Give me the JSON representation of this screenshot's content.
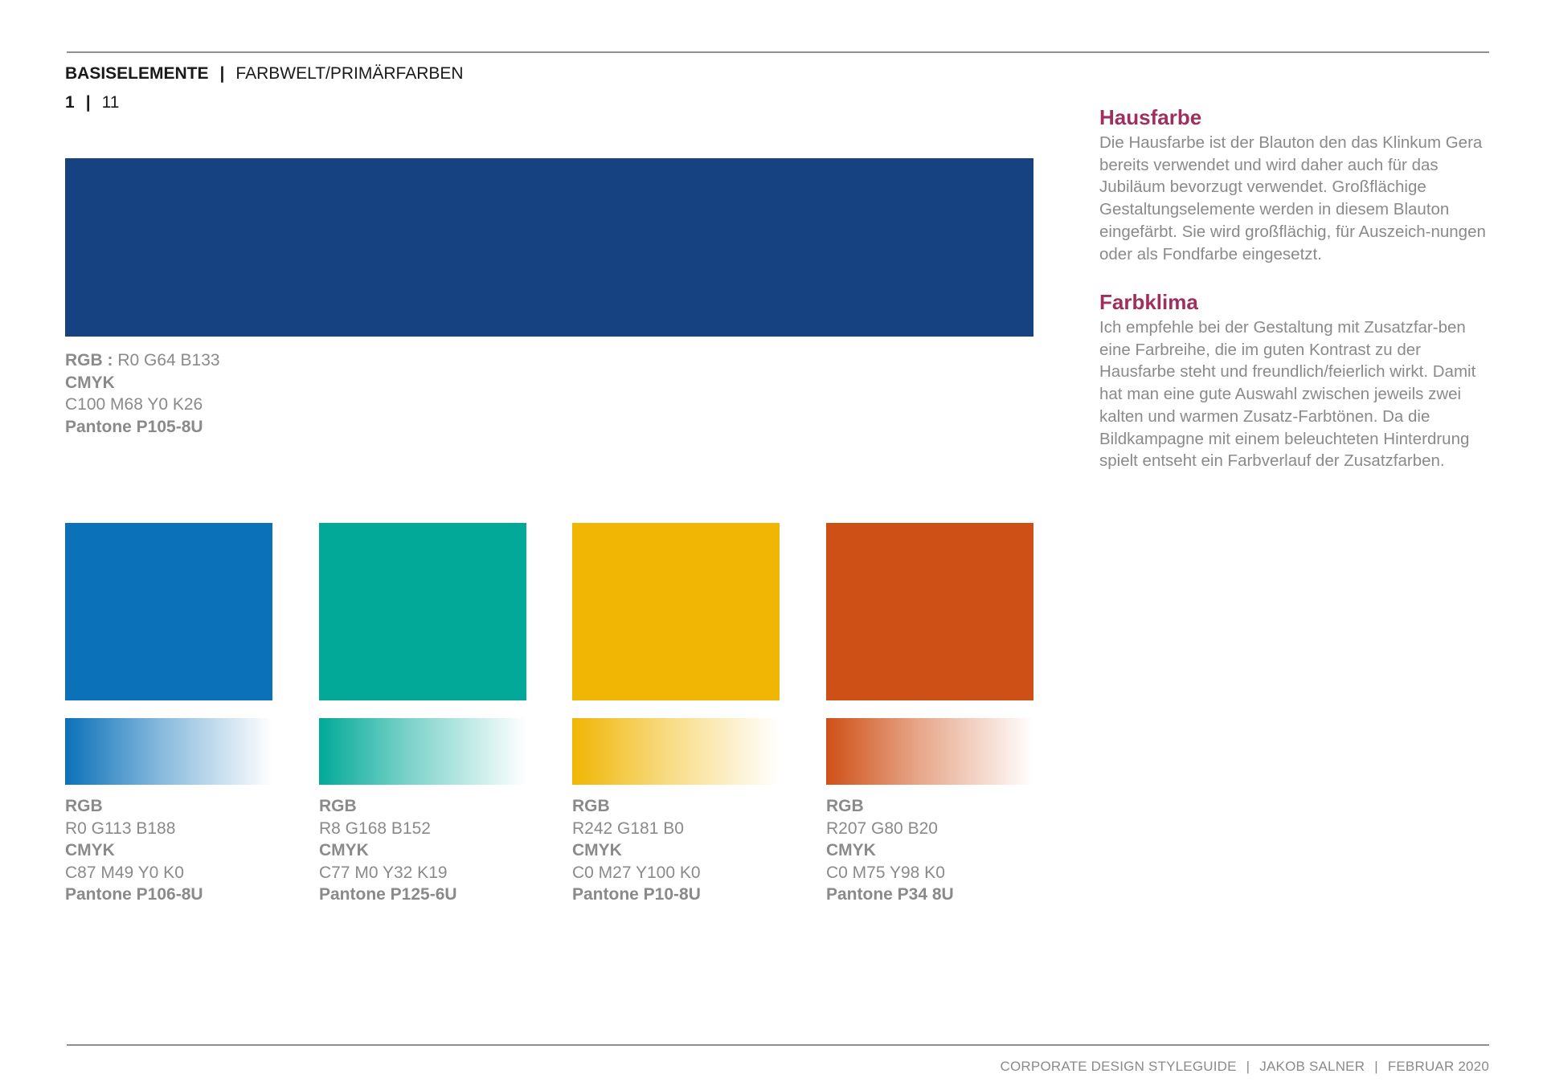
{
  "header": {
    "section": "BASISELEMENTE",
    "separator": "|",
    "subsection": "FARBWELT/PRIMÄRFARBEN",
    "page_current": "1",
    "page_total": "11"
  },
  "main_color": {
    "hex": "#174281",
    "rgb_label": "RGB :",
    "rgb_value": "R0 G64 B133",
    "cmyk_label": "CMYK",
    "cmyk_value": "C100 M68 Y0 K26",
    "pantone": "Pantone P105-8U"
  },
  "secondary_colors": [
    {
      "hex": "#0b71b9",
      "rgb_label": "RGB",
      "rgb_value": "R0 G113 B188",
      "cmyk_label": "CMYK",
      "cmyk_value": "C87 M49 Y0 K0",
      "pantone": "Pantone P106-8U"
    },
    {
      "hex": "#02a998",
      "rgb_label": "RGB",
      "rgb_value": "R8 G168 B152",
      "cmyk_label": "CMYK",
      "cmyk_value": "C77 M0 Y32 K19",
      "pantone": "Pantone P125-6U"
    },
    {
      "hex": "#f0b603",
      "rgb_label": "RGB",
      "rgb_value": "R242 G181 B0",
      "cmyk_label": "CMYK",
      "cmyk_value": "C0 M27 Y100 K0",
      "pantone": "Pantone P10-8U"
    },
    {
      "hex": "#cf5017",
      "rgb_label": "RGB",
      "rgb_value": "R207 G80 B20",
      "cmyk_label": "CMYK",
      "cmyk_value": "C0 M75 Y98 K0",
      "pantone": "Pantone P34 8U"
    }
  ],
  "aside": {
    "hausfarbe_title": "Hausfarbe",
    "hausfarbe_text": "Die Hausfarbe ist der Blauton den das Klinkum Gera bereits verwendet und wird daher auch für das Jubiläum bevorzugt verwendet. Großflächige Gestaltungselemente werden in diesem Blauton eingefärbt. Sie wird großflächig, für Auszeich-nungen oder als Fondfarbe eingesetzt.",
    "farbklima_title": "Farbklima",
    "farbklima_text": "Ich empfehle bei der Gestaltung mit Zusatzfar-ben eine Farbreihe, die im guten Kontrast zu der Hausfarbe steht und freundlich/feierlich wirkt. Damit hat man eine gute Auswahl zwischen jeweils zwei kalten und warmen Zusatz-Farbtönen. Da die Bildkampagne mit einem beleuchteten Hinterdrung spielt entseht ein Farbverlauf der Zusatzfarben."
  },
  "footer": {
    "title": "CORPORATE DESIGN STYLEGUIDE",
    "author": "JAKOB SALNER",
    "date": "FEBRUAR 2020",
    "separator": "|"
  }
}
